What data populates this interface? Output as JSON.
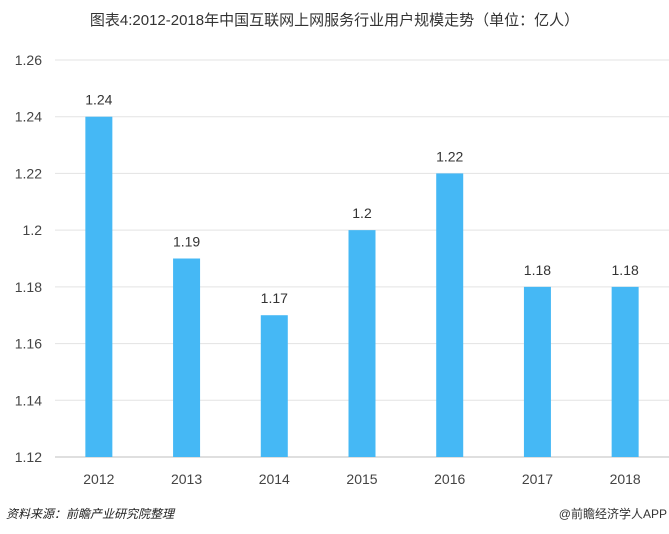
{
  "chart_data": {
    "type": "bar",
    "title": "图表4:2012-2018年中国互联网上网服务行业用户规模走势（单位：亿人）",
    "categories": [
      "2012",
      "2013",
      "2014",
      "2015",
      "2016",
      "2017",
      "2018"
    ],
    "values": [
      1.24,
      1.19,
      1.17,
      1.2,
      1.22,
      1.18,
      1.18
    ],
    "value_labels": [
      "1.24",
      "1.19",
      "1.17",
      "1.2",
      "1.22",
      "1.18",
      "1.18"
    ],
    "ylim": [
      1.12,
      1.26
    ],
    "yticks": [
      "1.12",
      "1.14",
      "1.16",
      "1.18",
      "1.2",
      "1.22",
      "1.24",
      "1.26"
    ],
    "grid": true,
    "xlabel": "",
    "ylabel": "",
    "bar_color": "#45b8f5"
  },
  "footer": {
    "source": "资料来源：前瞻产业研究院整理",
    "brand": "@前瞻经济学人APP"
  }
}
